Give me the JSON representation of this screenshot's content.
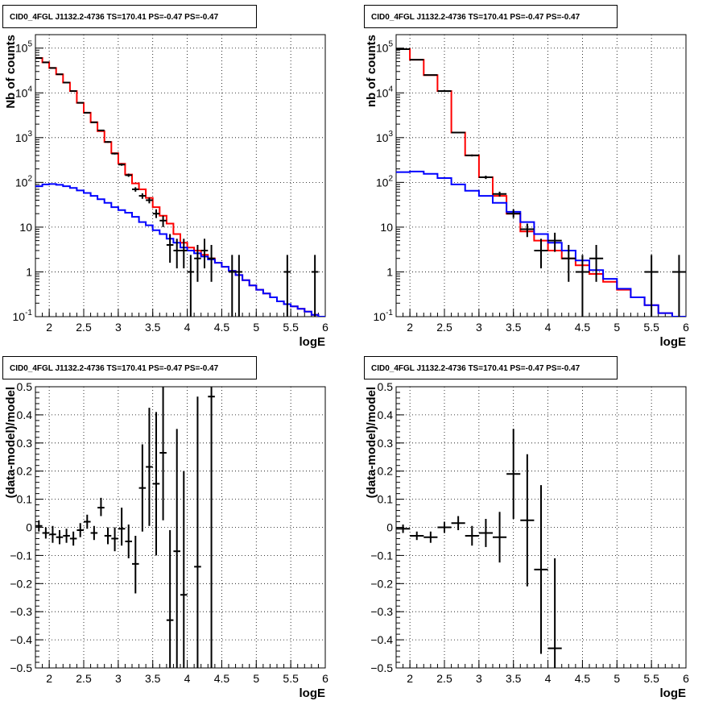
{
  "chart_data": [
    {
      "type": "histogram",
      "panel": "top-left",
      "title": "CID0_4FGL J1132.2-4736 TS=170.41 PS=-0.47 PS=-0.47",
      "xlabel": "logE",
      "ylabel": "Nb of counts",
      "xlim": [
        1.8,
        6.0
      ],
      "ylim": [
        0.1,
        200000
      ],
      "yscale": "log",
      "grid": true,
      "xticks": [
        2,
        2.5,
        3,
        3.5,
        4,
        4.5,
        5,
        5.5,
        6
      ],
      "xtick_labels": [
        "2",
        "2.5",
        "3",
        "3.5",
        "4",
        "4.5",
        "5",
        "5.5",
        "6"
      ],
      "yticks": [
        0.1,
        1,
        10,
        100,
        1000,
        10000,
        100000
      ],
      "ytick_labels": [
        "10^-1",
        "1",
        "10",
        "10^2",
        "10^3",
        "10^4",
        "10^5"
      ],
      "bin_edges": [
        1.8,
        1.9,
        2.0,
        2.1,
        2.2,
        2.3,
        2.4,
        2.5,
        2.6,
        2.7,
        2.8,
        2.9,
        3.0,
        3.1,
        3.2,
        3.3,
        3.4,
        3.5,
        3.6,
        3.7,
        3.8,
        3.9,
        4.0,
        4.1,
        4.2,
        4.3,
        4.4,
        4.5,
        4.6,
        4.7,
        4.8,
        4.9,
        5.0,
        5.1,
        5.2,
        5.3,
        5.4,
        5.5,
        5.6,
        5.7,
        5.8,
        5.9,
        6.0
      ],
      "series": [
        {
          "name": "",
          "color": "#ff0000",
          "values": [
            60000,
            48000,
            36000,
            26000,
            17000,
            11000,
            6000,
            3600,
            2200,
            1400,
            800,
            450,
            260,
            150,
            95,
            70,
            45,
            28,
            18,
            12,
            7,
            4.5,
            3.5,
            3.0,
            2.4,
            2.0,
            1.6,
            1.3,
            1.05,
            0.85,
            0.65,
            0.5,
            0.4,
            0.33,
            0.27,
            0.22,
            0.19,
            0.17,
            0.15,
            0.13,
            0.11,
            0.1
          ]
        },
        {
          "name": "",
          "color": "#0000ff",
          "values": [
            82,
            90,
            92,
            88,
            82,
            75,
            66,
            58,
            50,
            42,
            35,
            28,
            24,
            21,
            17,
            13,
            11,
            8.5,
            7,
            5.5,
            4.5,
            3.5,
            3.0,
            2.6,
            2.2,
            1.9,
            1.6,
            1.3,
            1.05,
            0.85,
            0.65,
            0.5,
            0.4,
            0.33,
            0.27,
            0.22,
            0.19,
            0.17,
            0.15,
            0.13,
            0.11,
            0.1
          ]
        }
      ],
      "points": [
        {
          "x": 1.85,
          "y": 60000,
          "ylo": 59500,
          "yhi": 60500
        },
        {
          "x": 1.95,
          "y": 48000,
          "ylo": 47500,
          "yhi": 48500
        },
        {
          "x": 2.05,
          "y": 36000,
          "ylo": 35600,
          "yhi": 36400
        },
        {
          "x": 2.15,
          "y": 26000,
          "ylo": 25600,
          "yhi": 26400
        },
        {
          "x": 2.25,
          "y": 17000,
          "ylo": 16700,
          "yhi": 17300
        },
        {
          "x": 2.35,
          "y": 11000,
          "ylo": 10800,
          "yhi": 11200
        },
        {
          "x": 2.45,
          "y": 6000,
          "ylo": 5900,
          "yhi": 6100
        },
        {
          "x": 2.55,
          "y": 3600,
          "ylo": 3530,
          "yhi": 3670
        },
        {
          "x": 2.65,
          "y": 2200,
          "ylo": 2150,
          "yhi": 2250
        },
        {
          "x": 2.75,
          "y": 1450,
          "ylo": 1410,
          "yhi": 1490
        },
        {
          "x": 2.85,
          "y": 800,
          "ylo": 770,
          "yhi": 830
        },
        {
          "x": 2.95,
          "y": 440,
          "ylo": 420,
          "yhi": 460
        },
        {
          "x": 3.05,
          "y": 250,
          "ylo": 235,
          "yhi": 265
        },
        {
          "x": 3.15,
          "y": 145,
          "ylo": 133,
          "yhi": 157
        },
        {
          "x": 3.25,
          "y": 70,
          "ylo": 62,
          "yhi": 78
        },
        {
          "x": 3.35,
          "y": 50,
          "ylo": 43,
          "yhi": 57
        },
        {
          "x": 3.45,
          "y": 40,
          "ylo": 34,
          "yhi": 46
        },
        {
          "x": 3.55,
          "y": 20,
          "ylo": 16,
          "yhi": 25
        },
        {
          "x": 3.65,
          "y": 14,
          "ylo": 10,
          "yhi": 18
        },
        {
          "x": 3.75,
          "y": 4,
          "ylo": 1.6,
          "yhi": 7
        },
        {
          "x": 3.85,
          "y": 3,
          "ylo": 1.2,
          "yhi": 5.5
        },
        {
          "x": 3.95,
          "y": 3,
          "ylo": 1.2,
          "yhi": 5.5
        },
        {
          "x": 4.05,
          "y": 1,
          "ylo": 0.1,
          "yhi": 2.4
        },
        {
          "x": 4.15,
          "y": 2,
          "ylo": 0.6,
          "yhi": 4
        },
        {
          "x": 4.25,
          "y": 3,
          "ylo": 1.2,
          "yhi": 5.5
        },
        {
          "x": 4.35,
          "y": 2,
          "ylo": 0.6,
          "yhi": 4
        },
        {
          "x": 4.65,
          "y": 1,
          "ylo": 0.1,
          "yhi": 2.4
        },
        {
          "x": 4.75,
          "y": 1,
          "ylo": 0.1,
          "yhi": 2.4
        },
        {
          "x": 5.45,
          "y": 1,
          "ylo": 0.1,
          "yhi": 2.4
        },
        {
          "x": 5.85,
          "y": 1,
          "ylo": 0.1,
          "yhi": 2.4
        }
      ]
    },
    {
      "type": "histogram",
      "panel": "top-right",
      "title": "CID0_4FGL J1132.2-4736 TS=170.41 PS=-0.47 PS=-0.47",
      "xlabel": "logE",
      "ylabel": "nb of counts",
      "xlim": [
        1.8,
        6.0
      ],
      "ylim": [
        0.1,
        200000
      ],
      "yscale": "log",
      "grid": true,
      "xticks": [
        2,
        2.5,
        3,
        3.5,
        4,
        4.5,
        5,
        5.5,
        6
      ],
      "xtick_labels": [
        "2",
        "2.5",
        "3",
        "3.5",
        "4",
        "4.5",
        "5",
        "5.5",
        "6"
      ],
      "yticks": [
        0.1,
        1,
        10,
        100,
        1000,
        10000,
        100000
      ],
      "ytick_labels": [
        "10^-1",
        "1",
        "10",
        "10^2",
        "10^3",
        "10^4",
        "10^5"
      ],
      "bin_edges": [
        1.8,
        2.0,
        2.2,
        2.4,
        2.6,
        2.8,
        3.0,
        3.2,
        3.4,
        3.6,
        3.8,
        4.0,
        4.2,
        4.4,
        4.6,
        4.8,
        5.0,
        5.2,
        5.4,
        5.6,
        5.8,
        6.0
      ],
      "series": [
        {
          "name": "",
          "color": "#ff0000",
          "values": [
            95000,
            55000,
            25000,
            11000,
            1300,
            400,
            130,
            50,
            20,
            8,
            5,
            3,
            2,
            1.4,
            0.9,
            0.6,
            0.4,
            0.27,
            0.18,
            0.12,
            0.1
          ]
        },
        {
          "name": "",
          "color": "#0000ff",
          "values": [
            170,
            175,
            155,
            125,
            90,
            65,
            50,
            35,
            22,
            13,
            7,
            4.5,
            3,
            1.8,
            1.1,
            0.7,
            0.42,
            0.27,
            0.18,
            0.12,
            0.1
          ]
        }
      ],
      "points": [
        {
          "x": 1.9,
          "y": 95000,
          "ylo": 94500,
          "yhi": 95500
        },
        {
          "x": 2.1,
          "y": 55000,
          "ylo": 54600,
          "yhi": 55400
        },
        {
          "x": 2.3,
          "y": 25000,
          "ylo": 24700,
          "yhi": 25300
        },
        {
          "x": 2.5,
          "y": 11000,
          "ylo": 10800,
          "yhi": 11200
        },
        {
          "x": 2.7,
          "y": 1300,
          "ylo": 1260,
          "yhi": 1340
        },
        {
          "x": 2.9,
          "y": 400,
          "ylo": 380,
          "yhi": 420
        },
        {
          "x": 3.1,
          "y": 130,
          "ylo": 119,
          "yhi": 141
        },
        {
          "x": 3.3,
          "y": 55,
          "ylo": 48,
          "yhi": 62
        },
        {
          "x": 3.5,
          "y": 20,
          "ylo": 16,
          "yhi": 25
        },
        {
          "x": 3.7,
          "y": 9,
          "ylo": 6,
          "yhi": 12
        },
        {
          "x": 3.9,
          "y": 3,
          "ylo": 1.2,
          "yhi": 5.5
        },
        {
          "x": 4.1,
          "y": 5,
          "ylo": 2.8,
          "yhi": 7.5
        },
        {
          "x": 4.3,
          "y": 2,
          "ylo": 0.6,
          "yhi": 4
        },
        {
          "x": 4.5,
          "y": 1,
          "ylo": 0.1,
          "yhi": 2.4
        },
        {
          "x": 4.7,
          "y": 2,
          "ylo": 0.6,
          "yhi": 4
        },
        {
          "x": 5.5,
          "y": 1,
          "ylo": 0.1,
          "yhi": 2.4
        },
        {
          "x": 5.9,
          "y": 1,
          "ylo": 0.1,
          "yhi": 2.4
        }
      ]
    },
    {
      "type": "scatter",
      "panel": "bottom-left",
      "title": "CID0_4FGL J1132.2-4736 TS=170.41 PS=-0.47 PS=-0.47",
      "xlabel": "logE",
      "ylabel": "(data-model)/model",
      "xlim": [
        1.8,
        6.0
      ],
      "ylim": [
        -0.5,
        0.5
      ],
      "yscale": "linear",
      "grid": true,
      "xticks": [
        2,
        2.5,
        3,
        3.5,
        4,
        4.5,
        5,
        5.5,
        6
      ],
      "xtick_labels": [
        "2",
        "2.5",
        "3",
        "3.5",
        "4",
        "4.5",
        "5",
        "5.5",
        "6"
      ],
      "yticks": [
        -0.5,
        -0.4,
        -0.3,
        -0.2,
        -0.1,
        0,
        0.1,
        0.2,
        0.3,
        0.4,
        0.5
      ],
      "ytick_labels": [
        "−0.5",
        "−0.4",
        "−0.3",
        "−0.2",
        "−0.1",
        "0",
        "0.1",
        "0.2",
        "0.3",
        "0.4",
        "0.5"
      ],
      "points": [
        {
          "x": 1.85,
          "y": 0.005,
          "ylo": -0.015,
          "yhi": 0.025
        },
        {
          "x": 1.95,
          "y": -0.02,
          "ylo": -0.04,
          "yhi": 0.0
        },
        {
          "x": 2.05,
          "y": -0.025,
          "ylo": -0.055,
          "yhi": 0.005
        },
        {
          "x": 2.15,
          "y": -0.035,
          "ylo": -0.06,
          "yhi": -0.01
        },
        {
          "x": 2.25,
          "y": -0.03,
          "ylo": -0.055,
          "yhi": -0.005
        },
        {
          "x": 2.35,
          "y": -0.04,
          "ylo": -0.065,
          "yhi": -0.015
        },
        {
          "x": 2.45,
          "y": -0.01,
          "ylo": -0.035,
          "yhi": 0.015
        },
        {
          "x": 2.55,
          "y": 0.02,
          "ylo": -0.005,
          "yhi": 0.045
        },
        {
          "x": 2.65,
          "y": -0.02,
          "ylo": -0.045,
          "yhi": 0.005
        },
        {
          "x": 2.75,
          "y": 0.07,
          "ylo": 0.04,
          "yhi": 0.105
        },
        {
          "x": 2.85,
          "y": -0.03,
          "ylo": -0.06,
          "yhi": 0.0
        },
        {
          "x": 2.95,
          "y": -0.04,
          "ylo": -0.085,
          "yhi": 0.0
        },
        {
          "x": 3.05,
          "y": -0.005,
          "ylo": -0.065,
          "yhi": 0.07
        },
        {
          "x": 3.15,
          "y": -0.05,
          "ylo": -0.11,
          "yhi": 0.01
        },
        {
          "x": 3.25,
          "y": -0.13,
          "ylo": -0.235,
          "yhi": -0.03
        },
        {
          "x": 3.35,
          "y": 0.14,
          "ylo": -0.015,
          "yhi": 0.295
        },
        {
          "x": 3.45,
          "y": 0.215,
          "ylo": 0.005,
          "yhi": 0.425
        },
        {
          "x": 3.55,
          "y": 0.155,
          "ylo": -0.1,
          "yhi": 0.41
        },
        {
          "x": 3.65,
          "y": 0.265,
          "ylo": 0.025,
          "yhi": 0.5
        },
        {
          "x": 3.75,
          "y": -0.33,
          "ylo": -0.5,
          "yhi": -0.01
        },
        {
          "x": 3.85,
          "y": -0.085,
          "ylo": -0.5,
          "yhi": 0.35
        },
        {
          "x": 3.95,
          "y": -0.24,
          "ylo": -0.5,
          "yhi": 0.2
        },
        {
          "x": 4.15,
          "y": -0.14,
          "ylo": -0.5,
          "yhi": 0.465
        },
        {
          "x": 4.35,
          "y": 0.465,
          "ylo": -0.5,
          "yhi": 0.5
        }
      ]
    },
    {
      "type": "scatter",
      "panel": "bottom-right",
      "title": "CID0_4FGL J1132.2-4736 TS=170.41 PS=-0.47 PS=-0.47",
      "xlabel": "logE",
      "ylabel": "(data-model)/model",
      "xlim": [
        1.8,
        6.0
      ],
      "ylim": [
        -0.5,
        0.5
      ],
      "yscale": "linear",
      "grid": true,
      "xticks": [
        2,
        2.5,
        3,
        3.5,
        4,
        4.5,
        5,
        5.5,
        6
      ],
      "xtick_labels": [
        "2",
        "2.5",
        "3",
        "3.5",
        "4",
        "4.5",
        "5",
        "5.5",
        "6"
      ],
      "yticks": [
        -0.5,
        -0.4,
        -0.3,
        -0.2,
        -0.1,
        0,
        0.1,
        0.2,
        0.3,
        0.4,
        0.5
      ],
      "ytick_labels": [
        "−0.5",
        "−0.4",
        "−0.3",
        "−0.2",
        "−0.1",
        "0",
        "0.1",
        "0.2",
        "0.3",
        "0.4",
        "0.5"
      ],
      "points": [
        {
          "x": 1.9,
          "y": -0.005,
          "ylo": -0.02,
          "yhi": 0.01
        },
        {
          "x": 2.1,
          "y": -0.03,
          "ylo": -0.045,
          "yhi": -0.015
        },
        {
          "x": 2.3,
          "y": -0.035,
          "ylo": -0.055,
          "yhi": -0.015
        },
        {
          "x": 2.5,
          "y": 0.0,
          "ylo": -0.02,
          "yhi": 0.02
        },
        {
          "x": 2.7,
          "y": 0.015,
          "ylo": -0.01,
          "yhi": 0.04
        },
        {
          "x": 2.9,
          "y": -0.03,
          "ylo": -0.065,
          "yhi": 0.005
        },
        {
          "x": 3.1,
          "y": -0.02,
          "ylo": -0.07,
          "yhi": 0.03
        },
        {
          "x": 3.3,
          "y": -0.035,
          "ylo": -0.125,
          "yhi": 0.055
        },
        {
          "x": 3.5,
          "y": 0.19,
          "ylo": 0.03,
          "yhi": 0.35
        },
        {
          "x": 3.7,
          "y": 0.025,
          "ylo": -0.21,
          "yhi": 0.26
        },
        {
          "x": 3.9,
          "y": -0.15,
          "ylo": -0.45,
          "yhi": 0.15
        },
        {
          "x": 4.1,
          "y": -0.43,
          "ylo": -0.5,
          "yhi": -0.11
        }
      ]
    }
  ]
}
